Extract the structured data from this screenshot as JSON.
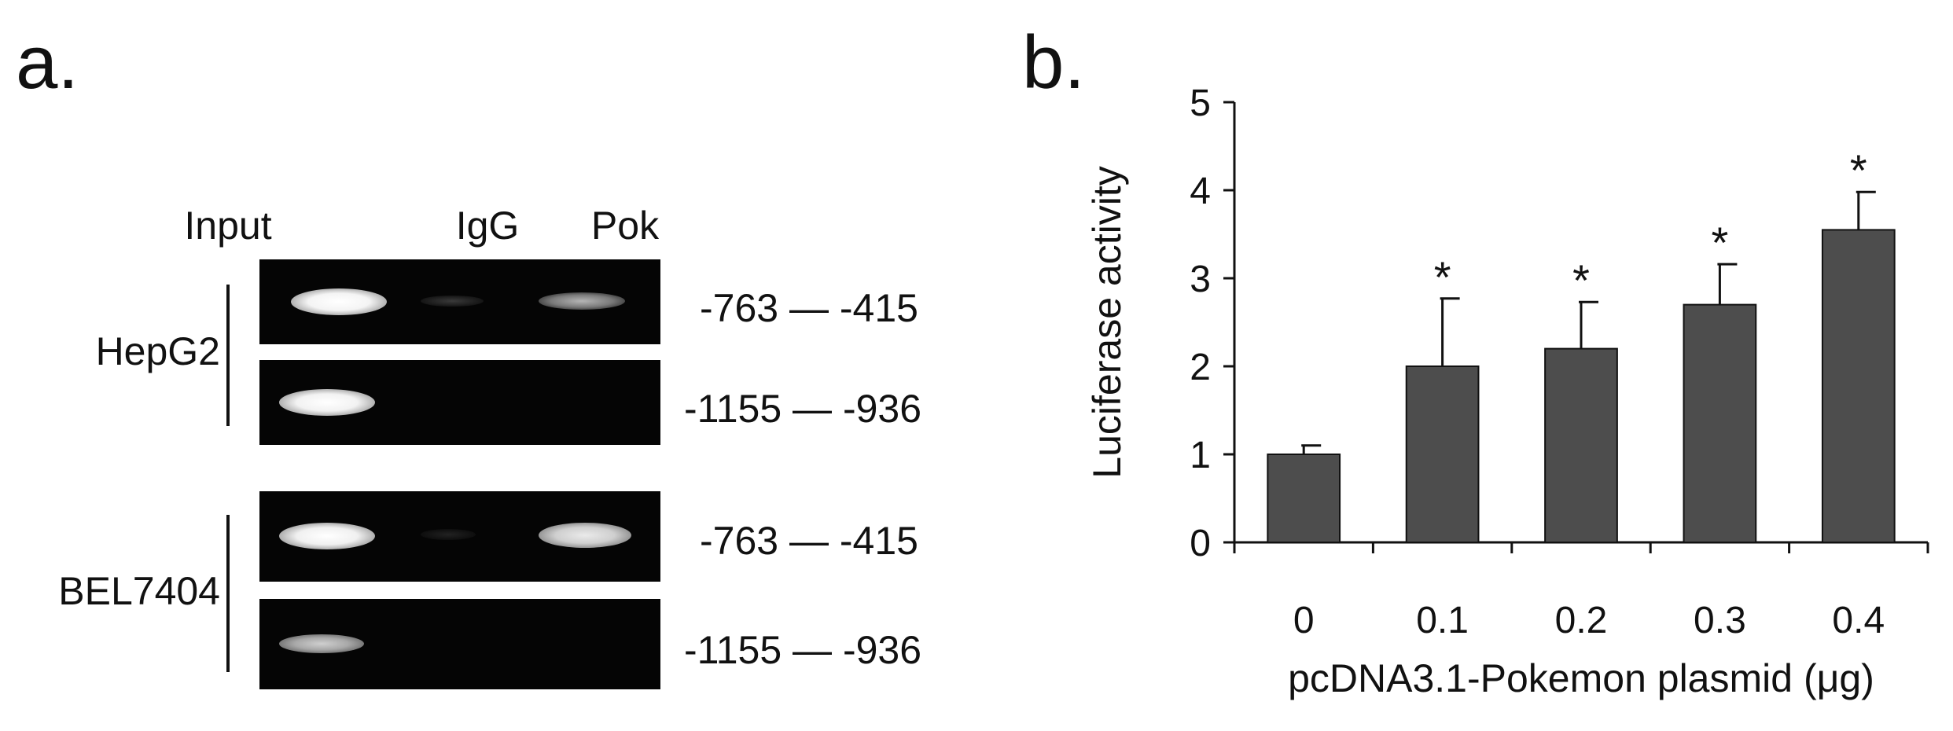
{
  "panel_a": {
    "label": "a.",
    "lanes": [
      "Input",
      "IgG",
      "Pok"
    ],
    "groups": [
      {
        "name": "HepG2",
        "rows": [
          {
            "region": "-763 — -415",
            "bands": [
              1.0,
              0.12,
              0.45
            ]
          },
          {
            "region": "-1155 — -936",
            "bands": [
              1.0,
              0.0,
              0.0
            ]
          }
        ]
      },
      {
        "name": "BEL7404",
        "rows": [
          {
            "region": "-763 — -415",
            "bands": [
              0.95,
              0.05,
              0.75
            ]
          },
          {
            "region": "-1155 — -936",
            "bands": [
              0.6,
              0.0,
              0.0
            ]
          }
        ]
      }
    ]
  },
  "panel_b": {
    "label": "b."
  },
  "chart_data": {
    "type": "bar",
    "categories": [
      "0",
      "0.1",
      "0.2",
      "0.3",
      "0.4"
    ],
    "values": [
      1.0,
      2.0,
      2.2,
      2.7,
      3.55
    ],
    "errors": [
      0.1,
      0.77,
      0.53,
      0.46,
      0.43
    ],
    "significance": [
      "",
      "*",
      "*",
      "*",
      "*"
    ],
    "xlabel": "pcDNA3.1-Pokemon plasmid (μg)",
    "ylabel": "Luciferase activity",
    "ylim": [
      0,
      5
    ],
    "yticks": [
      "0",
      "1",
      "2",
      "3",
      "4",
      "5"
    ],
    "bar_color": "#4d4d4d",
    "grid": false
  }
}
